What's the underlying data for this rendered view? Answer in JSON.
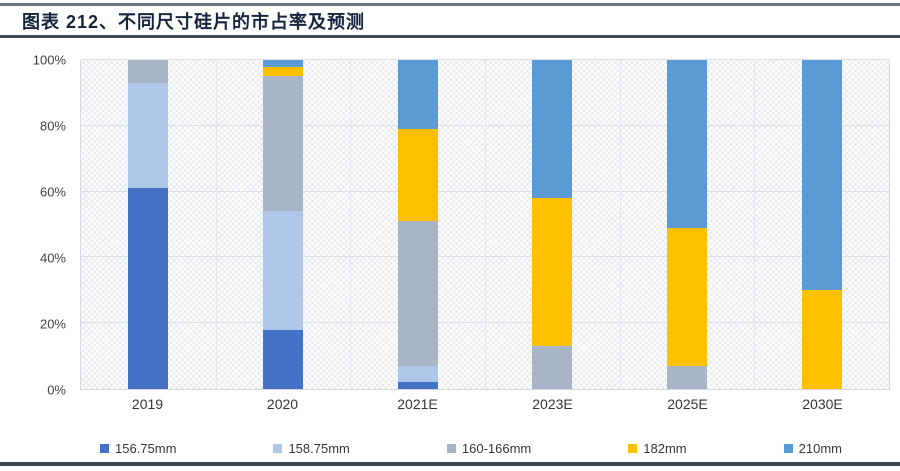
{
  "header": {
    "title": "图表 212、不同尺寸硅片的市占率及预测"
  },
  "colors": {
    "rule_top": "#6b7280",
    "rule_title": "#3f4a5a",
    "rule_bottom": "#39424e",
    "grid": "#dcdfe5",
    "axis_text": "#3c3f45",
    "title_text": "#16243d"
  },
  "chart_data": {
    "type": "bar",
    "stacked": true,
    "title": "图表 212、不同尺寸硅片的市占率及预测",
    "categories": [
      "2019",
      "2020",
      "2021E",
      "2023E",
      "2025E",
      "2030E"
    ],
    "series": [
      {
        "name": "156.75mm",
        "color": "#4472C4",
        "values": [
          61,
          18,
          2,
          0,
          0,
          0
        ]
      },
      {
        "name": "158.75mm",
        "color": "#AEC6E8",
        "values": [
          32,
          36,
          5,
          0,
          0,
          0
        ]
      },
      {
        "name": "160-166mm",
        "color": "#A9B5C7",
        "values": [
          7,
          41,
          44,
          13,
          7,
          0
        ]
      },
      {
        "name": "182mm",
        "color": "#FFC000",
        "values": [
          0,
          3,
          28,
          45,
          42,
          30
        ]
      },
      {
        "name": "210mm",
        "color": "#5B9BD5",
        "values": [
          0,
          2,
          21,
          42,
          51,
          70
        ]
      }
    ],
    "xlabel": "",
    "ylabel": "",
    "y_ticks": [
      "0%",
      "20%",
      "40%",
      "60%",
      "80%",
      "100%"
    ],
    "ylim": [
      0,
      100
    ],
    "grid": true,
    "legend_position": "bottom"
  }
}
